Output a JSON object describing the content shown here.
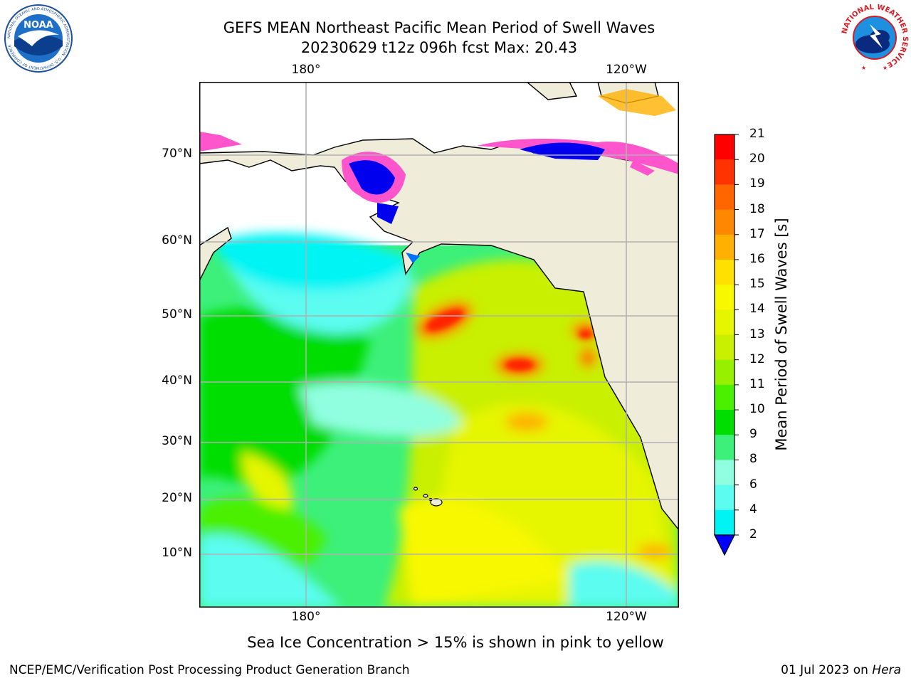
{
  "title": {
    "line1": "GEFS MEAN Northeast Pacific Mean Period of Swell Waves",
    "line2": "20230629 t12z 096h fcst   Max: 20.43"
  },
  "map": {
    "lon_labels": [
      "180°",
      "120°W"
    ],
    "lat_labels": [
      "70°N",
      "60°N",
      "50°N",
      "40°N",
      "30°N",
      "20°N",
      "10°N"
    ]
  },
  "colorbar": {
    "label": "Mean Period of Swell Waves [s]",
    "ticks": [
      "21",
      "20",
      "19",
      "18",
      "17",
      "16",
      "15",
      "14",
      "13",
      "12",
      "11",
      "10",
      "9",
      "8",
      "6",
      "4",
      "2"
    ],
    "colors": [
      "#ff0000",
      "#ff3300",
      "#ff6600",
      "#ff8800",
      "#ffb000",
      "#ffe000",
      "#f8f800",
      "#e6f500",
      "#c8f000",
      "#96f000",
      "#4bf000",
      "#00dd00",
      "#3cf07a",
      "#90ffe0",
      "#5cfcf0",
      "#00f4f4",
      "#00d8ff",
      "#0070ff"
    ],
    "arrow_color": "#0000ff"
  },
  "logos": {
    "noaa_text": "NOAA",
    "noaa_ring": "NATIONAL OCEANIC AND ATMOSPHERIC ADMINISTRATION · U.S. DEPARTMENT OF COMMERCE",
    "nws_ring": "NATIONAL WEATHER SERVICE"
  },
  "note": "Sea Ice Concentration > 15% is shown in pink to yellow",
  "footer": {
    "left": "NCEP/EMC/Verification Post Processing Product Generation Branch",
    "date": "01 Jul 2023 on ",
    "host": "Hera"
  }
}
